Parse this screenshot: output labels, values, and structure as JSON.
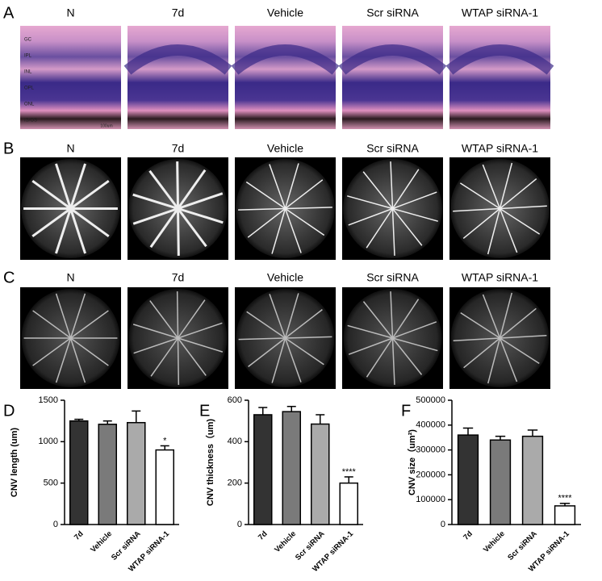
{
  "panels": [
    {
      "letter": "A",
      "columns": [
        "N",
        "7d",
        "Vehicle",
        "Scr siRNA",
        "WTAP siRNA-1"
      ],
      "layers": [
        "GC",
        "IPL",
        "INL",
        "OPL",
        "ONL",
        "IS/OS"
      ],
      "scale_bar": "100um"
    },
    {
      "letter": "B",
      "columns": [
        "N",
        "7d",
        "Vehicle",
        "Scr siRNA",
        "WTAP siRNA-1"
      ]
    },
    {
      "letter": "C",
      "columns": [
        "N",
        "7d",
        "Vehicle",
        "Scr siRNA",
        "WTAP siRNA-1"
      ]
    }
  ],
  "chart_data": [
    {
      "type": "bar",
      "letter": "D",
      "ylabel": "CNV length (um)",
      "categories": [
        "7d",
        "Vehicle",
        "Scr siRNA",
        "WTAP siRNA-1"
      ],
      "values": [
        1250,
        1210,
        1230,
        900
      ],
      "errors": [
        20,
        40,
        140,
        50
      ],
      "colors": [
        "#333333",
        "#7a7a7a",
        "#aaaaaa",
        "#ffffff"
      ],
      "significance": [
        null,
        null,
        null,
        "*"
      ],
      "ylim": [
        0,
        1500
      ],
      "yticks": [
        0,
        500,
        1000,
        1500
      ]
    },
    {
      "type": "bar",
      "letter": "E",
      "ylabel": "CNV thickness（um)",
      "categories": [
        "7d",
        "Vehicle",
        "Scr siRNA",
        "WTAP siRNA-1"
      ],
      "values": [
        530,
        545,
        485,
        200
      ],
      "errors": [
        35,
        25,
        45,
        30
      ],
      "colors": [
        "#333333",
        "#7a7a7a",
        "#aaaaaa",
        "#ffffff"
      ],
      "significance": [
        null,
        null,
        null,
        "****"
      ],
      "ylim": [
        0,
        600
      ],
      "yticks": [
        0,
        200,
        400,
        600
      ]
    },
    {
      "type": "bar",
      "letter": "F",
      "ylabel": "CNV size（um²)",
      "categories": [
        "7d",
        "Vehicle",
        "Scr siRNA",
        "WTAP siRNA-1"
      ],
      "values": [
        360000,
        340000,
        355000,
        75000
      ],
      "errors": [
        28000,
        15000,
        25000,
        10000
      ],
      "colors": [
        "#333333",
        "#7a7a7a",
        "#aaaaaa",
        "#ffffff"
      ],
      "significance": [
        null,
        null,
        null,
        "****"
      ],
      "ylim": [
        0,
        500000
      ],
      "yticks": [
        0,
        100000,
        200000,
        300000,
        400000,
        500000
      ]
    }
  ]
}
